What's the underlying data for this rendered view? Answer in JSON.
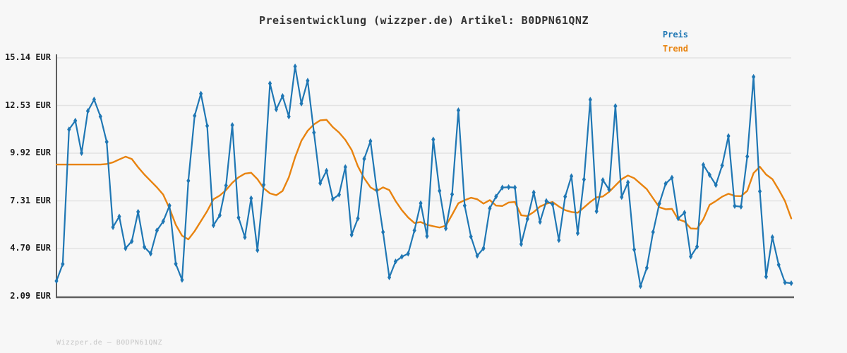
{
  "title": "Preisentwicklung (wizzper.de) Artikel: B0DPN61QNZ",
  "legend": {
    "preis_label": "Preis",
    "trend_label": "Trend"
  },
  "footer": "Wizzper.de — B0DPN61QNZ",
  "colors": {
    "price": "#1f77b4",
    "trend": "#e8830f",
    "grid": "#e3e3e3",
    "axis": "#5f5f5f",
    "background": "#f7f7f7",
    "title_text": "#333333",
    "tick_text": "#1a1a1a",
    "footer_text": "#c6c6c6"
  },
  "y_axis": {
    "unit": "EUR",
    "tick_labels": [
      "15.14 EUR",
      "12.53 EUR",
      "9.92 EUR",
      "7.31 EUR",
      "4.70 EUR",
      "2.09 EUR"
    ]
  },
  "chart_data": {
    "type": "line",
    "title": "Preisentwicklung (wizzper.de) Artikel: B0DPN61QNZ",
    "ylabel": "EUR",
    "ylim": [
      2.09,
      15.14
    ],
    "yticks": [
      15.14,
      12.53,
      9.92,
      7.31,
      4.7,
      2.09
    ],
    "grid": true,
    "legend_position": "top-right",
    "x_axis_labels": "none",
    "series": [
      {
        "name": "Preis",
        "color": "#1f77b4",
        "marker": "diamond",
        "values": [
          2.92,
          3.85,
          11.22,
          11.7,
          9.93,
          12.23,
          12.86,
          11.93,
          10.54,
          5.87,
          6.45,
          4.71,
          5.1,
          6.71,
          4.78,
          4.42,
          5.69,
          6.19,
          7.05,
          3.86,
          2.98,
          8.41,
          11.97,
          13.18,
          11.42,
          5.97,
          6.52,
          8.15,
          11.46,
          6.39,
          5.32,
          7.45,
          4.61,
          8.19,
          13.74,
          12.32,
          13.05,
          11.93,
          14.67,
          12.64,
          13.89,
          11.05,
          8.28,
          8.96,
          7.41,
          7.65,
          9.16,
          5.45,
          6.35,
          9.61,
          10.58,
          7.9,
          5.6,
          3.12,
          3.99,
          4.25,
          4.42,
          5.69,
          7.18,
          5.38,
          10.67,
          7.86,
          5.8,
          7.67,
          12.27,
          7.05,
          5.35,
          4.3,
          4.71,
          6.9,
          7.55,
          8.04,
          8.06,
          8.04,
          4.94,
          6.32,
          7.77,
          6.16,
          7.3,
          7.12,
          5.16,
          7.54,
          8.66,
          5.54,
          8.48,
          12.85,
          6.74,
          8.45,
          7.93,
          12.5,
          7.52,
          8.32,
          4.64,
          2.64,
          3.64,
          5.6,
          7.16,
          8.25,
          8.58,
          6.35,
          6.66,
          4.26,
          4.8,
          9.28,
          8.73,
          8.18,
          9.25,
          10.86,
          7.03,
          6.99,
          9.74,
          14.1,
          7.83,
          3.16,
          5.32,
          3.81,
          2.84,
          2.8
        ]
      },
      {
        "name": "Trend",
        "color": "#e8830f",
        "marker": "none",
        "values": [
          9.3,
          9.3,
          9.3,
          9.3,
          9.3,
          9.3,
          9.3,
          9.3,
          9.33,
          9.42,
          9.58,
          9.73,
          9.6,
          9.15,
          8.75,
          8.4,
          8.05,
          7.65,
          6.9,
          6.0,
          5.4,
          5.2,
          5.65,
          6.2,
          6.75,
          7.4,
          7.6,
          7.9,
          8.3,
          8.6,
          8.8,
          8.85,
          8.5,
          8.0,
          7.72,
          7.62,
          7.85,
          8.6,
          9.7,
          10.6,
          11.15,
          11.5,
          11.72,
          11.75,
          11.35,
          11.05,
          10.65,
          10.1,
          9.2,
          8.55,
          8.05,
          7.85,
          8.05,
          7.9,
          7.3,
          6.8,
          6.4,
          6.1,
          6.15,
          6.0,
          5.92,
          5.85,
          5.95,
          6.55,
          7.18,
          7.35,
          7.48,
          7.4,
          7.16,
          7.35,
          7.05,
          7.03,
          7.22,
          7.25,
          6.52,
          6.48,
          6.7,
          7.0,
          7.15,
          7.25,
          7.0,
          6.8,
          6.7,
          6.66,
          6.95,
          7.25,
          7.5,
          7.55,
          7.8,
          8.15,
          8.5,
          8.7,
          8.55,
          8.25,
          7.95,
          7.45,
          6.96,
          6.85,
          6.87,
          6.3,
          6.18,
          5.8,
          5.78,
          6.3,
          7.09,
          7.3,
          7.54,
          7.7,
          7.58,
          7.57,
          7.86,
          8.83,
          9.18,
          8.75,
          8.5,
          7.93,
          7.3,
          6.35
        ]
      }
    ]
  }
}
